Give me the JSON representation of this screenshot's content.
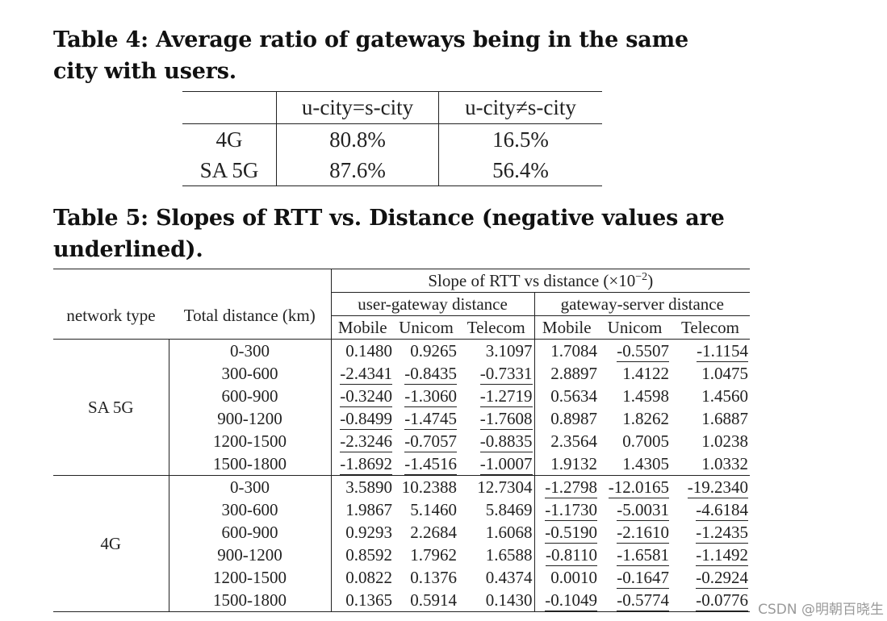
{
  "table4": {
    "caption": "Table 4: Average ratio of gateways being in the same city with users.",
    "columns": [
      "",
      "u-city=s-city",
      "u-city≠s-city"
    ],
    "rows": [
      [
        "4G",
        "80.8%",
        "16.5%"
      ],
      [
        "SA 5G",
        "87.6%",
        "56.4%"
      ]
    ]
  },
  "table5": {
    "caption": "Table 5: Slopes of RTT vs. Distance (negative values are underlined).",
    "header": {
      "network_type": "network type",
      "total_distance": "Total distance (km)",
      "slope": "Slope of RTT vs distance (×10",
      "slope_exp": "−2",
      "slope_close": ")",
      "user_gateway": "user-gateway distance",
      "gateway_server": "gateway-server distance",
      "carriers": [
        "Mobile",
        "Unicom",
        "Telecom",
        "Mobile",
        "Unicom",
        "Telecom"
      ]
    },
    "groups": [
      {
        "network": "SA 5G",
        "rows": [
          {
            "range": "0-300",
            "values": [
              "0.1480",
              "0.9265",
              "3.1097",
              "1.7084",
              "-0.5507",
              "-1.1154"
            ]
          },
          {
            "range": "300-600",
            "values": [
              "-2.4341",
              "-0.8435",
              "-0.7331",
              "2.8897",
              "1.4122",
              "1.0475"
            ]
          },
          {
            "range": "600-900",
            "values": [
              "-0.3240",
              "-1.3060",
              "-1.2719",
              "0.5634",
              "1.4598",
              "1.4560"
            ]
          },
          {
            "range": "900-1200",
            "values": [
              "-0.8499",
              "-1.4745",
              "-1.7608",
              "0.8987",
              "1.8262",
              "1.6887"
            ]
          },
          {
            "range": "1200-1500",
            "values": [
              "-2.3246",
              "-0.7057",
              "-0.8835",
              "2.3564",
              "0.7005",
              "1.0238"
            ]
          },
          {
            "range": "1500-1800",
            "values": [
              "-1.8692",
              "-1.4516",
              "-1.0007",
              "1.9132",
              "1.4305",
              "1.0332"
            ]
          }
        ]
      },
      {
        "network": "4G",
        "rows": [
          {
            "range": "0-300",
            "values": [
              "3.5890",
              "10.2388",
              "12.7304",
              "-1.2798",
              "-12.0165",
              "-19.2340"
            ]
          },
          {
            "range": "300-600",
            "values": [
              "1.9867",
              "5.1460",
              "5.8469",
              "-1.1730",
              "-5.0031",
              "-4.6184"
            ]
          },
          {
            "range": "600-900",
            "values": [
              "0.9293",
              "2.2684",
              "1.6068",
              "-0.5190",
              "-2.1610",
              "-1.2435"
            ]
          },
          {
            "range": "900-1200",
            "values": [
              "0.8592",
              "1.7962",
              "1.6588",
              "-0.8110",
              "-1.6581",
              "-1.1492"
            ]
          },
          {
            "range": "1200-1500",
            "values": [
              "0.0822",
              "0.1376",
              "0.4374",
              "0.0010",
              "-0.1647",
              "-0.2924"
            ]
          },
          {
            "range": "1500-1800",
            "values": [
              "0.1365",
              "0.5914",
              "0.1430",
              "-0.1049",
              "-0.5774",
              "-0.0776"
            ]
          }
        ]
      }
    ]
  },
  "watermark": "CSDN @明朝百晓生"
}
